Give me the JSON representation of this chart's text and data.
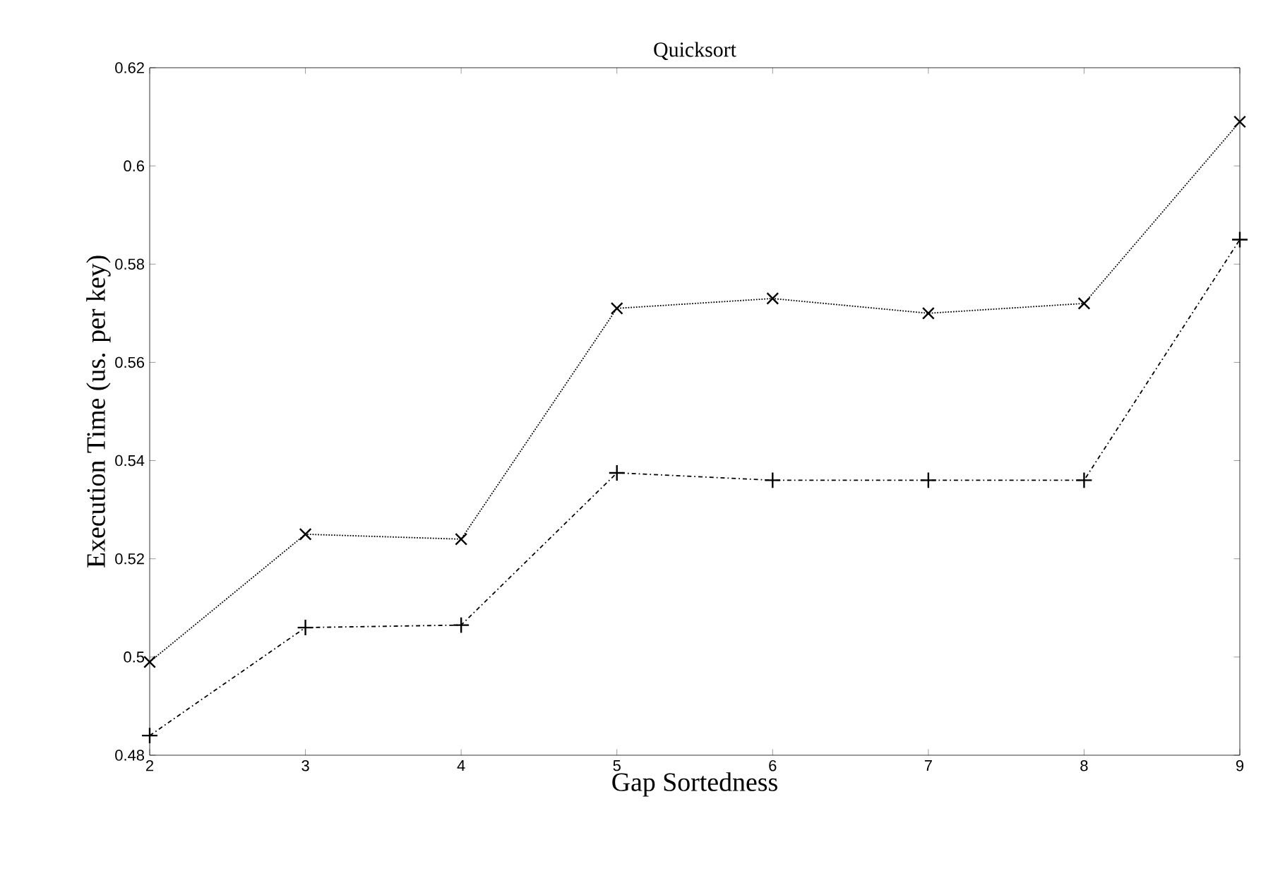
{
  "chart_data": {
    "type": "line",
    "title": "Quicksort",
    "xlabel": "Gap Sortedness",
    "ylabel": "Execution Time (us. per key)",
    "x": [
      2,
      3,
      4,
      5,
      6,
      7,
      8,
      9
    ],
    "series": [
      {
        "color": "#000000",
        "marker": "x",
        "line_style": "dotted",
        "values": [
          0.499,
          0.525,
          0.524,
          0.571,
          0.573,
          0.57,
          0.572,
          0.609
        ]
      },
      {
        "color": "#000000",
        "marker": "cross",
        "line_style": "dashdot",
        "values": [
          0.484,
          0.506,
          0.5065,
          0.5375,
          0.536,
          0.536,
          0.536,
          0.585
        ]
      }
    ],
    "xlim": [
      2,
      9
    ],
    "xticks": [
      2,
      3,
      4,
      5,
      6,
      7,
      8,
      9
    ],
    "ylim": [
      0.48,
      0.62
    ],
    "yticks": [
      0.48,
      0.5,
      0.52,
      0.54,
      0.56,
      0.58,
      0.6,
      0.62
    ],
    "grid": false
  }
}
